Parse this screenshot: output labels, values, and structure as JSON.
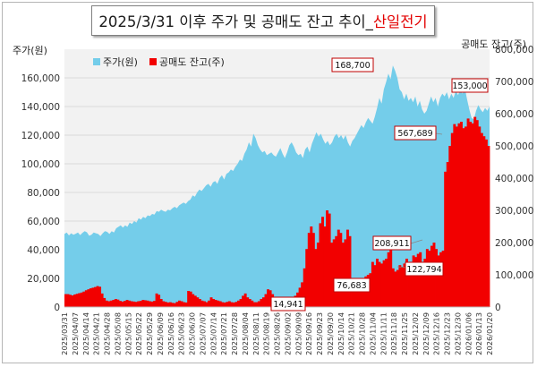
{
  "title": {
    "main": "2025/3/31 이후 주가 및 공매도 잔고 추이_",
    "highlight": "산일전기"
  },
  "colors": {
    "price": "#74cdea",
    "short": "#f20000",
    "plot_bg": "#f2f2f2",
    "grid": "#d9d9d9",
    "callout_border": "#c00000",
    "baseline": "#f0c000"
  },
  "chart_data": {
    "type": "area",
    "title": "2025/3/31 이후 주가 및 공매도 잔고 추이_산일전기",
    "ylabel_left": "주가(원)",
    "ylabel_right": "공매도 잔고(주)",
    "ylim_left": [
      0,
      180000
    ],
    "ylim_right": [
      0,
      800000
    ],
    "left_ticks": [
      "0",
      "20,000",
      "40,000",
      "60,000",
      "80,000",
      "100,000",
      "120,000",
      "140,000",
      "160,000"
    ],
    "right_ticks": [
      "0",
      "100,000",
      "200,000",
      "300,000",
      "400,000",
      "500,000",
      "600,000",
      "700,000",
      "800,000"
    ],
    "legend": [
      {
        "name": "주가(원)",
        "axis": "left"
      },
      {
        "name": "공매도 잔고(주)",
        "axis": "right"
      }
    ],
    "legend_position": "top-left",
    "x_tick_labels": [
      "2025/03/31",
      "2025/04/07",
      "2025/04/14",
      "2025/04/21",
      "2025/04/28",
      "2025/05/08",
      "2025/05/15",
      "2025/05/22",
      "2025/05/29",
      "2025/06/09",
      "2025/06/16",
      "2025/06/23",
      "2025/06/30",
      "2025/07/07",
      "2025/07/14",
      "2025/07/21",
      "2025/07/28",
      "2025/08/04",
      "2025/08/11",
      "2025/08/19",
      "2025/08/26",
      "2025/09/02",
      "2025/09/09",
      "2025/09/16",
      "2025/09/23",
      "2025/09/30",
      "2025/10/14",
      "2025/10/21",
      "2025/10/28",
      "2025/11/04",
      "2025/11/11",
      "2025/11/18",
      "2025/11/25",
      "2025/12/02",
      "2025/12/09",
      "2025/12/16",
      "2025/12/23",
      "2025/12/30",
      "2026/01/06",
      "2026/01/13",
      "2026/01/20"
    ],
    "series": [
      {
        "name": "주가(원)",
        "axis": "left",
        "values": [
          51000,
          52000,
          50000,
          51500,
          50500,
          51200,
          52000,
          50200,
          51800,
          53000,
          52200,
          49800,
          50500,
          52000,
          51500,
          51000,
          49500,
          51500,
          53000,
          52500,
          51000,
          53000,
          52000,
          55000,
          56000,
          57000,
          55500,
          57000,
          56000,
          59000,
          58000,
          60000,
          59000,
          62000,
          61000,
          63000,
          62000,
          64000,
          63500,
          65000,
          64500,
          67000,
          66500,
          68000,
          67000,
          66500,
          68000,
          67500,
          69000,
          70000,
          69000,
          71000,
          72000,
          73000,
          72000,
          74000,
          75000,
          78000,
          77000,
          80000,
          82000,
          81000,
          83000,
          85000,
          86000,
          84000,
          87000,
          88000,
          86000,
          90000,
          92000,
          89000,
          93000,
          94000,
          96000,
          95000,
          98000,
          100000,
          103000,
          102000,
          107000,
          110000,
          115000,
          112000,
          121000,
          118000,
          113000,
          110000,
          108000,
          109000,
          106000,
          107000,
          108000,
          106000,
          105000,
          108000,
          111000,
          107000,
          104000,
          108000,
          113000,
          115000,
          112000,
          108000,
          106000,
          107000,
          104000,
          110000,
          112000,
          108000,
          114000,
          118000,
          122000,
          119000,
          121000,
          117000,
          114000,
          116000,
          113000,
          115000,
          119000,
          121000,
          118000,
          120000,
          117000,
          120000,
          115000,
          112000,
          116000,
          118000,
          121000,
          124000,
          127000,
          125000,
          129000,
          132000,
          130000,
          128000,
          133000,
          139000,
          146000,
          142000,
          152000,
          157000,
          163000,
          159000,
          168700,
          165000,
          160000,
          152000,
          150000,
          145000,
          149000,
          144000,
          146000,
          143000,
          147000,
          140000,
          144000,
          138000,
          135000,
          137000,
          142000,
          147000,
          143000,
          146000,
          140000,
          146000,
          149000,
          147000,
          150000,
          145000,
          149000,
          146000,
          151000,
          148000,
          152000,
          149000,
          153000,
          145000,
          138000,
          132000,
          131000,
          137000,
          141000,
          138000,
          136000,
          139000,
          137000,
          140000
        ]
      },
      {
        "name": "공매도 잔고(주)",
        "axis": "right",
        "values": [
          40000,
          40000,
          38000,
          36000,
          39000,
          41000,
          43000,
          45000,
          48000,
          52000,
          55000,
          58000,
          60000,
          62000,
          65000,
          63000,
          42000,
          28000,
          20000,
          18000,
          20000,
          22000,
          25000,
          23000,
          19000,
          17000,
          19000,
          22000,
          20000,
          18000,
          17000,
          16000,
          18000,
          19000,
          22000,
          21000,
          20000,
          18000,
          17000,
          19000,
          42000,
          38000,
          25000,
          18000,
          16000,
          14000,
          15000,
          13000,
          12000,
          16000,
          20000,
          18000,
          15000,
          14000,
          50000,
          48000,
          40000,
          35000,
          30000,
          25000,
          20000,
          18000,
          15000,
          20000,
          30000,
          25000,
          22000,
          20000,
          18000,
          15000,
          14000,
          16000,
          18000,
          15000,
          14000,
          16000,
          20000,
          25000,
          35000,
          42000,
          30000,
          25000,
          20000,
          15000,
          14941,
          18000,
          25000,
          30000,
          40000,
          55000,
          52000,
          40000,
          30000,
          22000,
          20000,
          18000,
          15000,
          20000,
          30000,
          28000,
          25000,
          35000,
          45000,
          60000,
          76683,
          120000,
          180000,
          230000,
          250000,
          230000,
          180000,
          200000,
          260000,
          280000,
          250000,
          300000,
          290000,
          200000,
          210000,
          220000,
          240000,
          230000,
          200000,
          210000,
          240000,
          220000,
          90000,
          85000,
          70000,
          80000,
          78000,
          90000,
          95000,
          100000,
          105000,
          140000,
          130000,
          150000,
          140000,
          135000,
          145000,
          150000,
          170000,
          208911,
          120000,
          110000,
          115000,
          130000,
          125000,
          135000,
          150000,
          120000,
          140000,
          160000,
          155000,
          165000,
          170000,
          122794,
          150000,
          180000,
          175000,
          190000,
          200000,
          180000,
          160000,
          170000,
          175000,
          420000,
          450000,
          500000,
          540000,
          567689,
          560000,
          570000,
          575000,
          555000,
          560000,
          585000,
          575000,
          570000,
          590000,
          580000,
          560000,
          540000,
          530000,
          520000,
          500000
        ]
      }
    ],
    "callouts": [
      {
        "text": "168,700",
        "series": "주가(원)"
      },
      {
        "text": "153,000",
        "series": "주가(원)"
      },
      {
        "text": "567,689",
        "series": "공매도 잔고(주)"
      },
      {
        "text": "208,911",
        "series": "공매도 잔고(주)"
      },
      {
        "text": "122,794",
        "series": "공매도 잔고(주)"
      },
      {
        "text": "76,683",
        "series": "공매도 잔고(주)"
      },
      {
        "text": "14,941",
        "series": "공매도 잔고(주)"
      }
    ],
    "grid": true
  }
}
